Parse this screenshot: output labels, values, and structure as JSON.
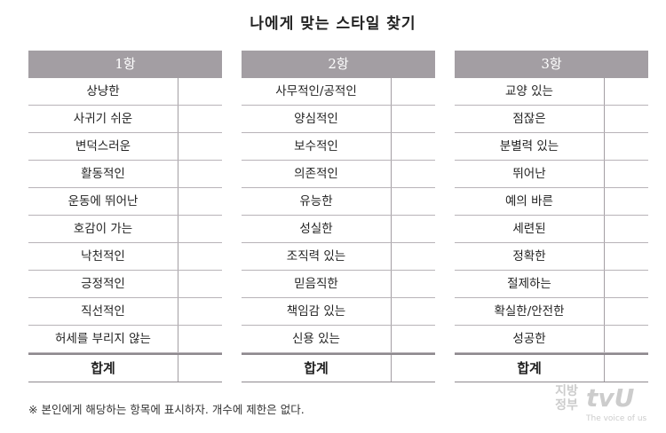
{
  "title": "나에게 맞는 스타일 찾기",
  "columns": [
    {
      "header": "1항",
      "items": [
        "상냥한",
        "사귀기 쉬운",
        "변덕스러운",
        "활동적인",
        "운동에 뛰어난",
        "호감이 가는",
        "낙천적인",
        "긍정적인",
        "직선적인",
        "허세를 부리지 않는"
      ],
      "total": "합계"
    },
    {
      "header": "2항",
      "items": [
        "사무적인/공적인",
        "양심적인",
        "보수적인",
        "의존적인",
        "유능한",
        "성실한",
        "조직력 있는",
        "믿음직한",
        "책임감 있는",
        "신용 있는"
      ],
      "total": "합계"
    },
    {
      "header": "3항",
      "items": [
        "교양 있는",
        "점잖은",
        "분별력 있는",
        "뛰어난",
        "예의 바른",
        "세련된",
        "정확한",
        "절제하는",
        "확실한/안전한",
        "성공한"
      ],
      "total": "합계"
    }
  ],
  "note": "※ 본인에게 해당하는 항목에 표시하자. 개수에 제한은 없다.",
  "watermark": {
    "korean": "지방정부",
    "brand": "tvU",
    "slogan": "The voice of us"
  },
  "colors": {
    "header": "#a39ea3"
  }
}
